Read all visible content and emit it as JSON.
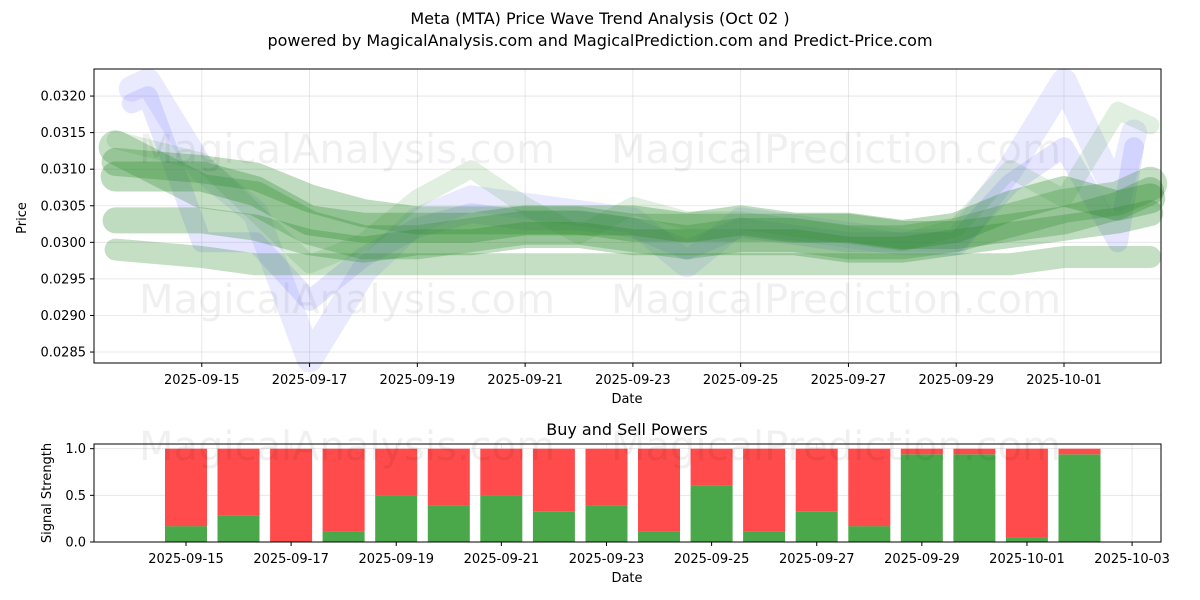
{
  "header": {
    "title": "Meta (MTA) Price Wave Trend Analysis (Oct 02 )",
    "subtitle": "powered by MagicalAnalysis.com and MagicalPrediction.com and Predict-Price.com"
  },
  "watermarks": [
    "MagicalAnalysis.com",
    "MagicalPrediction.com"
  ],
  "colors": {
    "buy": "#4aa84a",
    "sell": "#ff4b4b",
    "wave_green": "#2e8b2e",
    "wave_blue": "#6f6fff"
  },
  "chart_data": [
    {
      "type": "line",
      "title": "",
      "xlabel": "Date",
      "ylabel": "Price",
      "grid": true,
      "x_ticks": [
        "2025-09-15",
        "2025-09-17",
        "2025-09-19",
        "2025-09-21",
        "2025-09-23",
        "2025-09-25",
        "2025-09-27",
        "2025-09-29",
        "2025-10-01"
      ],
      "y_ticks": [
        "0.0285",
        "0.0290",
        "0.0295",
        "0.0300",
        "0.0305",
        "0.0310",
        "0.0315",
        "0.0320"
      ],
      "ylim": [
        0.02835,
        0.03237
      ],
      "x_range_days": [
        -2.0,
        17.8
      ],
      "series": [
        {
          "name": "wave-blue-1",
          "color": "#6f6fff",
          "x": [
            -1.3,
            -1,
            0,
            1,
            2,
            3,
            4,
            5,
            6,
            7,
            8,
            9,
            10,
            11,
            12,
            13,
            14,
            15,
            16,
            17,
            17.3
          ],
          "values": [
            0.0321,
            0.0322,
            0.031,
            0.0304,
            0.0284,
            0.0296,
            0.0303,
            0.0306,
            0.0305,
            0.0304,
            0.0303,
            0.0297,
            0.0303,
            0.0302,
            0.0301,
            0.03,
            0.03,
            0.031,
            0.0322,
            0.0306,
            0.0315
          ]
        },
        {
          "name": "wave-blue-2",
          "color": "#6f6fff",
          "x": [
            -1.3,
            -1,
            0,
            1,
            2,
            3,
            4,
            5,
            6,
            7,
            8,
            9,
            10,
            11,
            12,
            13,
            14,
            15,
            16,
            17,
            17.3
          ],
          "values": [
            0.0319,
            0.032,
            0.03,
            0.03,
            0.0292,
            0.0298,
            0.0302,
            0.0304,
            0.0303,
            0.0303,
            0.0302,
            0.0299,
            0.0302,
            0.0301,
            0.03,
            0.03,
            0.03,
            0.0308,
            0.0313,
            0.03,
            0.0313
          ]
        },
        {
          "name": "wave-green-1",
          "color": "#2e8b2e",
          "x": [
            -1.6,
            0,
            1,
            2,
            3,
            4,
            5,
            6,
            7,
            8,
            9,
            10,
            11,
            12,
            13,
            14,
            15,
            16,
            17,
            17.6
          ],
          "values": [
            0.0313,
            0.0307,
            0.0306,
            0.0302,
            0.03,
            0.03,
            0.0301,
            0.0302,
            0.0302,
            0.0301,
            0.03,
            0.0301,
            0.0301,
            0.03,
            0.03,
            0.0301,
            0.0303,
            0.0305,
            0.0306,
            0.0308
          ]
        },
        {
          "name": "wave-green-2",
          "color": "#2e8b2e",
          "x": [
            -1.6,
            0,
            1,
            2,
            3,
            4,
            5,
            6,
            7,
            8,
            9,
            10,
            11,
            12,
            13,
            14,
            15,
            16,
            17,
            17.6
          ],
          "values": [
            0.0309,
            0.0309,
            0.0307,
            0.0303,
            0.0302,
            0.0302,
            0.0302,
            0.0303,
            0.0303,
            0.0303,
            0.0302,
            0.0303,
            0.0302,
            0.0302,
            0.0301,
            0.0302,
            0.0305,
            0.0307,
            0.0305,
            0.0306
          ]
        },
        {
          "name": "wave-green-3",
          "color": "#2e8b2e",
          "x": [
            -1.6,
            0,
            1,
            2,
            3,
            4,
            5,
            6,
            7,
            8,
            9,
            10,
            11,
            12,
            13,
            14,
            15,
            16,
            17,
            17.6
          ],
          "values": [
            0.0303,
            0.0303,
            0.0302,
            0.03,
            0.0299,
            0.03,
            0.03,
            0.0301,
            0.0301,
            0.03,
            0.03,
            0.03,
            0.03,
            0.0299,
            0.0299,
            0.03,
            0.0301,
            0.0302,
            0.0303,
            0.0304
          ]
        },
        {
          "name": "wave-green-4",
          "color": "#2e8b2e",
          "x": [
            -1.6,
            0,
            1,
            2,
            3,
            4,
            5,
            6,
            7,
            8,
            9,
            10,
            11,
            12,
            13,
            14,
            15,
            16,
            17,
            17.6
          ],
          "values": [
            0.0299,
            0.0298,
            0.0297,
            0.0297,
            0.0297,
            0.0297,
            0.0297,
            0.0297,
            0.0297,
            0.0297,
            0.0297,
            0.0297,
            0.0297,
            0.0297,
            0.0297,
            0.0297,
            0.0297,
            0.0298,
            0.0298,
            0.0298
          ]
        },
        {
          "name": "wave-green-5",
          "color": "#2e8b2e",
          "x": [
            -1.6,
            0,
            1,
            2,
            3,
            4,
            5,
            6,
            7,
            8,
            9,
            10,
            11,
            12,
            13,
            14,
            15,
            16,
            17,
            17.6
          ],
          "values": [
            0.0311,
            0.031,
            0.0309,
            0.0306,
            0.0304,
            0.0303,
            0.0303,
            0.0303,
            0.0303,
            0.0302,
            0.0302,
            0.0302,
            0.0302,
            0.0302,
            0.0301,
            0.0301,
            0.0302,
            0.0303,
            0.0305,
            0.0307
          ]
        },
        {
          "name": "wave-green-6",
          "color": "#2e8b2e",
          "x": [
            -1.6,
            0,
            1,
            2,
            3,
            4,
            5,
            6,
            7,
            8,
            9,
            10,
            11,
            12,
            13,
            14,
            15,
            16,
            17,
            17.6
          ],
          "values": [
            0.0314,
            0.0311,
            0.0304,
            0.0297,
            0.03,
            0.0306,
            0.031,
            0.0305,
            0.0301,
            0.0305,
            0.0303,
            0.0303,
            0.0302,
            0.0301,
            0.03,
            0.0302,
            0.031,
            0.0306,
            0.0318,
            0.0316
          ]
        }
      ]
    },
    {
      "type": "bar",
      "title": "Buy and Sell Powers",
      "xlabel": "Date",
      "ylabel": "Signal Strength",
      "grid": true,
      "x_ticks": [
        "2025-09-15",
        "2025-09-17",
        "2025-09-19",
        "2025-09-21",
        "2025-09-23",
        "2025-09-25",
        "2025-09-27",
        "2025-09-29",
        "2025-10-01",
        "2025-10-03"
      ],
      "y_ticks": [
        "0.0",
        "0.5",
        "1.0"
      ],
      "ylim": [
        0,
        1.05
      ],
      "categories": [
        "2025-09-15",
        "2025-09-16",
        "2025-09-17",
        "2025-09-18",
        "2025-09-19",
        "2025-09-20",
        "2025-09-21",
        "2025-09-22",
        "2025-09-23",
        "2025-09-24",
        "2025-09-25",
        "2025-09-26",
        "2025-09-27",
        "2025-09-28",
        "2025-09-29",
        "2025-09-30",
        "2025-10-01",
        "2025-10-02"
      ],
      "series": [
        {
          "name": "Buy",
          "color": "#4aa84a",
          "values": [
            0.17,
            0.28,
            0.0,
            0.11,
            0.5,
            0.39,
            0.5,
            0.33,
            0.39,
            0.11,
            0.61,
            0.11,
            0.33,
            0.17,
            0.94,
            0.94,
            0.05,
            0.94
          ]
        },
        {
          "name": "Sell",
          "color": "#ff4b4b",
          "values": [
            0.83,
            0.72,
            1.0,
            0.89,
            0.5,
            0.61,
            0.5,
            0.67,
            0.61,
            0.89,
            0.39,
            0.89,
            0.67,
            0.83,
            0.06,
            0.06,
            0.95,
            0.06
          ]
        }
      ]
    }
  ]
}
